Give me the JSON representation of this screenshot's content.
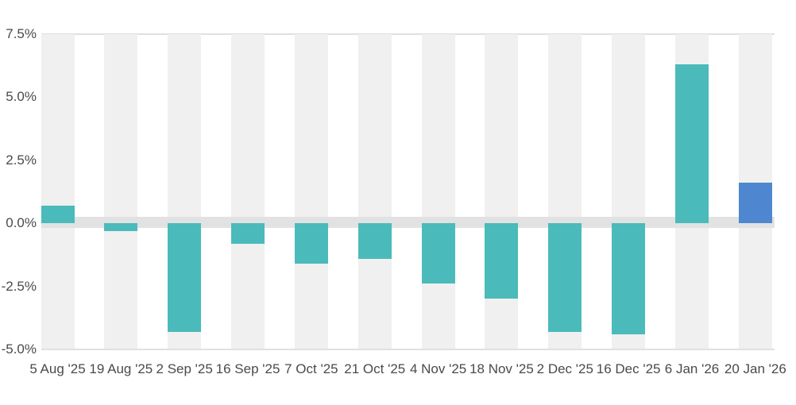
{
  "chart_data": {
    "type": "bar",
    "categories": [
      "5 Aug '25",
      "19 Aug '25",
      "2 Sep '25",
      "16 Sep '25",
      "7 Oct '25",
      "21 Oct '25",
      "4 Nov '25",
      "18 Nov '25",
      "2 Dec '25",
      "16 Dec '25",
      "6 Jan '26",
      "20 Jan '26"
    ],
    "values": [
      0.7,
      -0.3,
      -4.3,
      -0.8,
      -1.6,
      -1.4,
      -2.4,
      -3.0,
      -4.3,
      -4.4,
      6.3,
      1.6
    ],
    "unit": "%",
    "title": "",
    "xlabel": "",
    "ylabel": "",
    "ylim": [
      -5,
      7.5
    ],
    "y_ticks": [
      {
        "label": "7.5%",
        "value": 7.5
      },
      {
        "label": "5.0%",
        "value": 5.0
      },
      {
        "label": "2.5%",
        "value": 2.5
      },
      {
        "label": "0.0%",
        "value": 0.0
      },
      {
        "label": "-2.5%",
        "value": -2.5
      },
      {
        "label": "-5.0%",
        "value": -5.0
      }
    ],
    "highlight_index": 11,
    "legend": [],
    "grid": "top-bottom-and-zero-band-only",
    "colors": {
      "bar_default": "#4bbaba",
      "bar_highlight": "#4e87d0",
      "column_stripe": "#f0f0f0",
      "zero_band": "#e2e2e2",
      "gridline": "#e0e0e0",
      "tick_label": "#4a4a4a",
      "background": "#ffffff"
    }
  }
}
